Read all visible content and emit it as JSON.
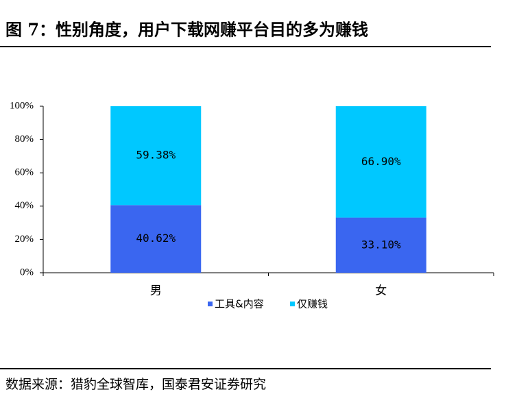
{
  "chart_data": {
    "type": "stacked_bar",
    "title": "图 7：性别角度，用户下载网赚平台目的多为赚钱",
    "source": "数据来源：猎豹全球智库，国泰君安证券研究",
    "categories": [
      "男",
      "女"
    ],
    "series": [
      {
        "name": "工具&内容",
        "color": "#3a66f0",
        "values": [
          40.62,
          33.1
        ],
        "value_labels": [
          "40.62%",
          "33.10%"
        ]
      },
      {
        "name": "仅赚钱",
        "color": "#00c8ff",
        "values": [
          59.38,
          66.9
        ],
        "value_labels": [
          "59.38%",
          "66.90%"
        ]
      }
    ],
    "ylim": [
      0,
      100
    ],
    "yticks": [
      {
        "value": 0,
        "label": "0%"
      },
      {
        "value": 20,
        "label": "20%"
      },
      {
        "value": 40,
        "label": "40%"
      },
      {
        "value": 60,
        "label": "60%"
      },
      {
        "value": 80,
        "label": "80%"
      },
      {
        "value": 100,
        "label": "100%"
      }
    ]
  }
}
